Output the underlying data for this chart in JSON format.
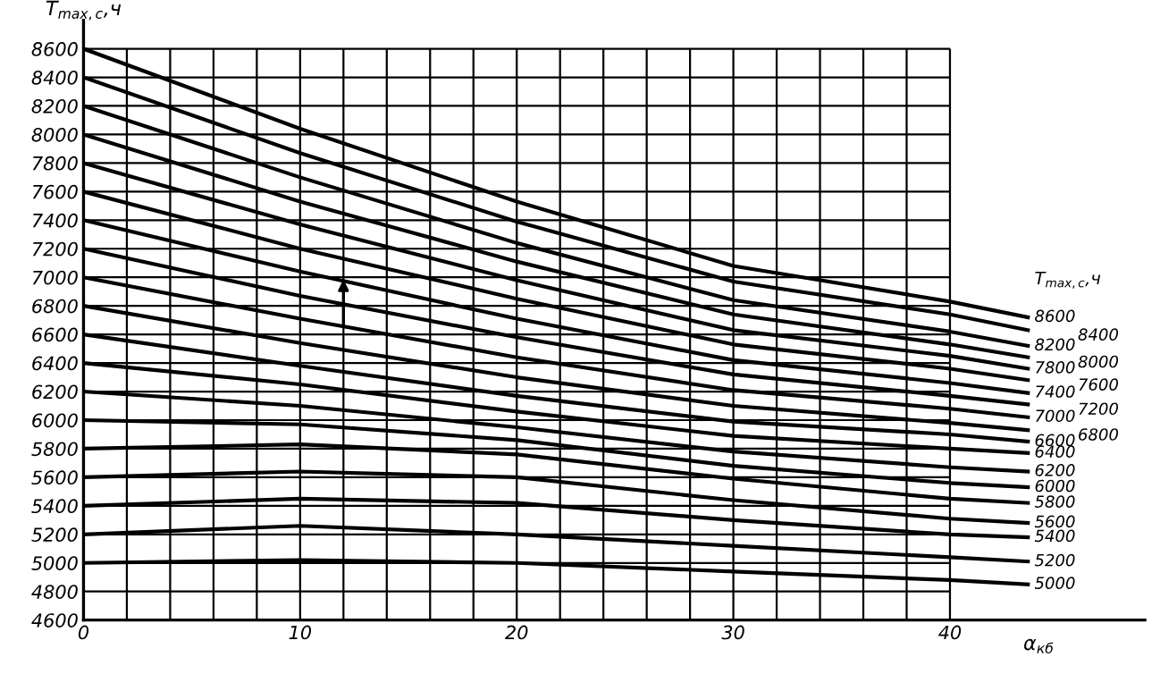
{
  "chart_data": {
    "type": "line",
    "ylabel": "T$_{max,c}$,ч",
    "xlabel": "α$_{кб}$",
    "legend_title": "T$_{max,c}$,ч",
    "x": [
      0,
      10,
      20,
      30,
      40,
      43.6
    ],
    "xlim": [
      0,
      49
    ],
    "ylim": [
      4600,
      8800
    ],
    "xticks": [
      0,
      {
        "value": 2,
        "label": null
      },
      {
        "value": 4,
        "label": null
      },
      {
        "value": 6,
        "label": null
      },
      {
        "value": 8,
        "label": null
      },
      10,
      {
        "value": 12,
        "label": null
      },
      {
        "value": 14,
        "label": null
      },
      {
        "value": 16,
        "label": null
      },
      {
        "value": 18,
        "label": null
      },
      20,
      {
        "value": 22,
        "label": null
      },
      {
        "value": 24,
        "label": null
      },
      {
        "value": 26,
        "label": null
      },
      {
        "value": 28,
        "label": null
      },
      30,
      {
        "value": 32,
        "label": null
      },
      {
        "value": 34,
        "label": null
      },
      {
        "value": 36,
        "label": null
      },
      {
        "value": 38,
        "label": null
      },
      40
    ],
    "yticks": [
      4600,
      4800,
      5000,
      5200,
      5400,
      5600,
      5800,
      6000,
      6200,
      6400,
      6600,
      6800,
      7000,
      7200,
      7400,
      7600,
      7800,
      8000,
      8200,
      8400,
      8600
    ],
    "grid": true,
    "legend": false,
    "marker": "none",
    "line_style": "solid",
    "series": [
      {
        "name": "8600",
        "color": "#000000",
        "values": [
          8600,
          8040,
          7530,
          7080,
          6830,
          6720
        ]
      },
      {
        "name": "8400",
        "color": "#000000",
        "values": [
          8400,
          7870,
          7390,
          6970,
          6740,
          6630
        ]
      },
      {
        "name": "8200",
        "color": "#000000",
        "values": [
          8200,
          7700,
          7240,
          6840,
          6620,
          6520
        ]
      },
      {
        "name": "8000",
        "color": "#000000",
        "values": [
          8000,
          7530,
          7110,
          6740,
          6530,
          6440
        ]
      },
      {
        "name": "7800",
        "color": "#000000",
        "values": [
          7800,
          7370,
          6980,
          6630,
          6450,
          6360
        ]
      },
      {
        "name": "7600",
        "color": "#000000",
        "values": [
          7600,
          7200,
          6850,
          6530,
          6360,
          6280
        ]
      },
      {
        "name": "7400",
        "color": "#000000",
        "values": [
          7400,
          7040,
          6710,
          6420,
          6260,
          6190
        ]
      },
      {
        "name": "7200",
        "color": "#000000",
        "values": [
          7200,
          6870,
          6580,
          6320,
          6170,
          6110
        ]
      },
      {
        "name": "7000",
        "color": "#000000",
        "values": [
          7000,
          6710,
          6440,
          6210,
          6080,
          6020
        ]
      },
      {
        "name": "6800",
        "color": "#000000",
        "values": [
          6800,
          6540,
          6300,
          6100,
          5980,
          5930
        ]
      },
      {
        "name": "6600",
        "color": "#000000",
        "values": [
          6600,
          6380,
          6170,
          5990,
          5900,
          5850
        ]
      },
      {
        "name": "6400",
        "color": "#000000",
        "values": [
          6400,
          6250,
          6060,
          5890,
          5800,
          5770
        ]
      },
      {
        "name": "6200",
        "color": "#000000",
        "values": [
          6200,
          6100,
          5950,
          5780,
          5670,
          5640
        ]
      },
      {
        "name": "6000",
        "color": "#000000",
        "values": [
          6000,
          5970,
          5860,
          5680,
          5560,
          5530
        ]
      },
      {
        "name": "5800",
        "color": "#000000",
        "values": [
          5800,
          5830,
          5760,
          5590,
          5450,
          5420
        ]
      },
      {
        "name": "5600",
        "color": "#000000",
        "values": [
          5600,
          5640,
          5600,
          5440,
          5310,
          5280
        ]
      },
      {
        "name": "5400",
        "color": "#000000",
        "values": [
          5400,
          5450,
          5420,
          5300,
          5200,
          5180
        ]
      },
      {
        "name": "5200",
        "color": "#000000",
        "values": [
          5200,
          5260,
          5200,
          5120,
          5040,
          5010
        ]
      },
      {
        "name": "5000",
        "color": "#000000",
        "values": [
          5000,
          5020,
          5000,
          4940,
          4880,
          4850
        ]
      }
    ]
  }
}
